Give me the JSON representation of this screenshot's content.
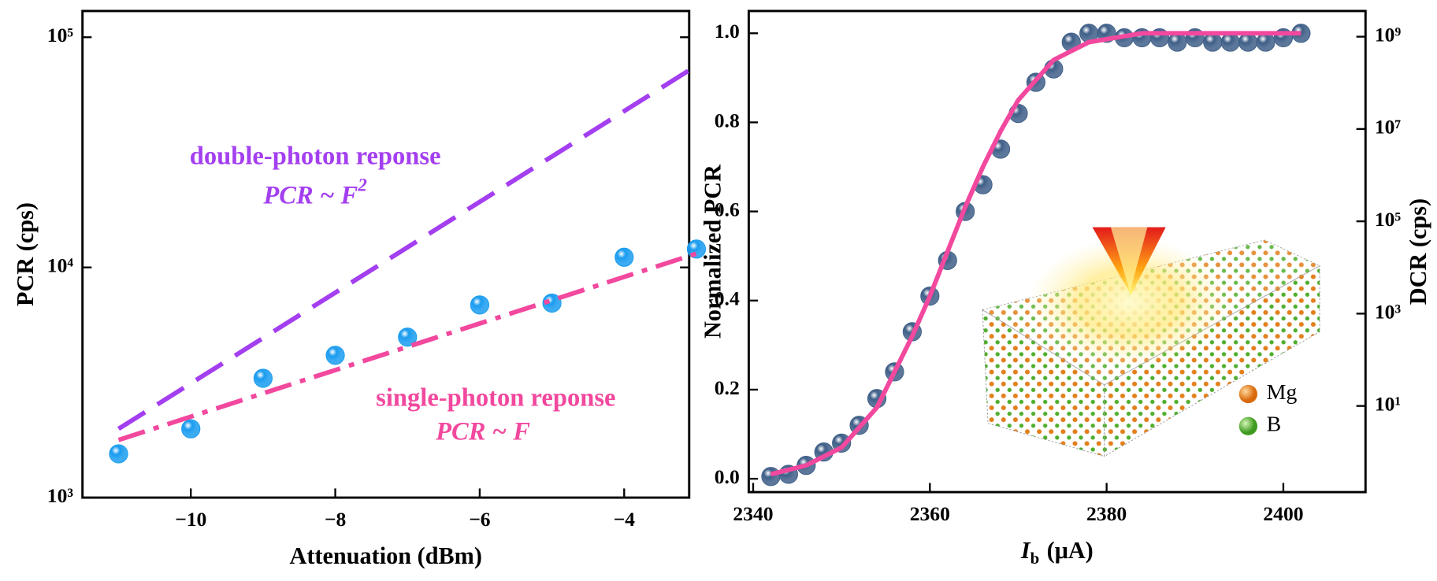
{
  "chart_data": [
    {
      "type": "scatter",
      "xlabel": "Attenuation (dBm)",
      "ylabel": "PCR (cps)",
      "ylog": true,
      "xlim": [
        -11.5,
        -3.1
      ],
      "xticks": [
        {
          "value": -10,
          "label": "−10"
        },
        {
          "value": -8,
          "label": "−8"
        },
        {
          "value": -6,
          "label": "−6"
        },
        {
          "value": -4,
          "label": "−4"
        }
      ],
      "ylim": [
        1000,
        130000
      ],
      "yticks": [
        {
          "value": 1000,
          "label": "10³"
        },
        {
          "value": 10000,
          "label": "10⁴"
        },
        {
          "value": 100000,
          "label": "10⁵"
        }
      ],
      "series": [
        {
          "kind": "scatter",
          "color": "#1a9cf0",
          "x": [
            -11,
            -10,
            -9,
            -8,
            -7,
            -6,
            -5,
            -4,
            -3
          ],
          "values": [
            1550,
            1990,
            3300,
            4150,
            4980,
            6870,
            7000,
            11070,
            12020
          ]
        },
        {
          "kind": "line",
          "style": "dashdot",
          "color": "#f2489e",
          "x": [
            -11,
            -3
          ],
          "values": [
            1780,
            11480
          ]
        },
        {
          "kind": "line",
          "style": "dashed",
          "color": "#a43ff0",
          "x": [
            -11,
            -3
          ],
          "values": [
            1990,
            75200
          ]
        }
      ],
      "annotations": [
        {
          "text": "double-photon reponse",
          "color": "#a43ff0"
        },
        {
          "text": "PCR ~ F",
          "sup": "2",
          "color": "#a43ff0"
        },
        {
          "text": "single-photon reponse",
          "color": "#f2489e"
        },
        {
          "text": "PCR ~ F",
          "color": "#f2489e"
        }
      ]
    },
    {
      "type": "scatter",
      "xlabel": "I",
      "xlabel_sub": "b",
      "xlabel_unit": "(μA)",
      "ylabel": "Normalized PCR",
      "y2label": "DCR (cps)",
      "xlim": [
        2339.5,
        2409.3
      ],
      "xticks": [
        2340,
        2360,
        2380,
        2400
      ],
      "ylim": [
        -0.03,
        1.05
      ],
      "yticks": [
        {
          "value": 0,
          "label": "0.0"
        },
        0.2,
        0.4,
        0.6,
        0.8,
        {
          "value": 1,
          "label": "1.0"
        }
      ],
      "y2log": true,
      "y2lim": [
        0.136,
        3600000000
      ],
      "y2ticks": [
        {
          "value": 10,
          "label": "10¹"
        },
        {
          "value": 1000,
          "label": "10³"
        },
        {
          "value": 100000,
          "label": "10⁵"
        },
        {
          "value": 10000000,
          "label": "10⁷"
        },
        {
          "value": 1000000000,
          "label": "10⁹"
        }
      ],
      "series": [
        {
          "kind": "scatter",
          "color": "#3f5f88",
          "x": [
            2342,
            2344,
            2346,
            2348,
            2350,
            2352,
            2354,
            2356,
            2358,
            2360,
            2362,
            2364,
            2366,
            2368,
            2370,
            2372,
            2374,
            2376,
            2378,
            2380,
            2382,
            2384,
            2386,
            2388,
            2390,
            2392,
            2394,
            2396,
            2398,
            2400,
            2402
          ],
          "values": [
            0.005,
            0.01,
            0.03,
            0.06,
            0.08,
            0.12,
            0.18,
            0.24,
            0.33,
            0.41,
            0.49,
            0.6,
            0.66,
            0.74,
            0.82,
            0.89,
            0.92,
            0.98,
            1.0,
            1.0,
            0.99,
            0.99,
            0.99,
            0.98,
            0.99,
            0.98,
            0.98,
            0.98,
            0.98,
            0.99,
            1.0
          ]
        },
        {
          "kind": "line",
          "style": "solid",
          "color": "#f2489e",
          "x": [
            2342,
            2346,
            2350,
            2354,
            2358,
            2360,
            2362,
            2364,
            2366,
            2368,
            2370,
            2374,
            2378,
            2384,
            2402
          ],
          "values": [
            0.01,
            0.03,
            0.07,
            0.16,
            0.32,
            0.41,
            0.51,
            0.61,
            0.7,
            0.78,
            0.85,
            0.94,
            0.98,
            1.0,
            1.0
          ]
        }
      ],
      "inset_labels": [
        "Mg",
        "B"
      ]
    }
  ]
}
